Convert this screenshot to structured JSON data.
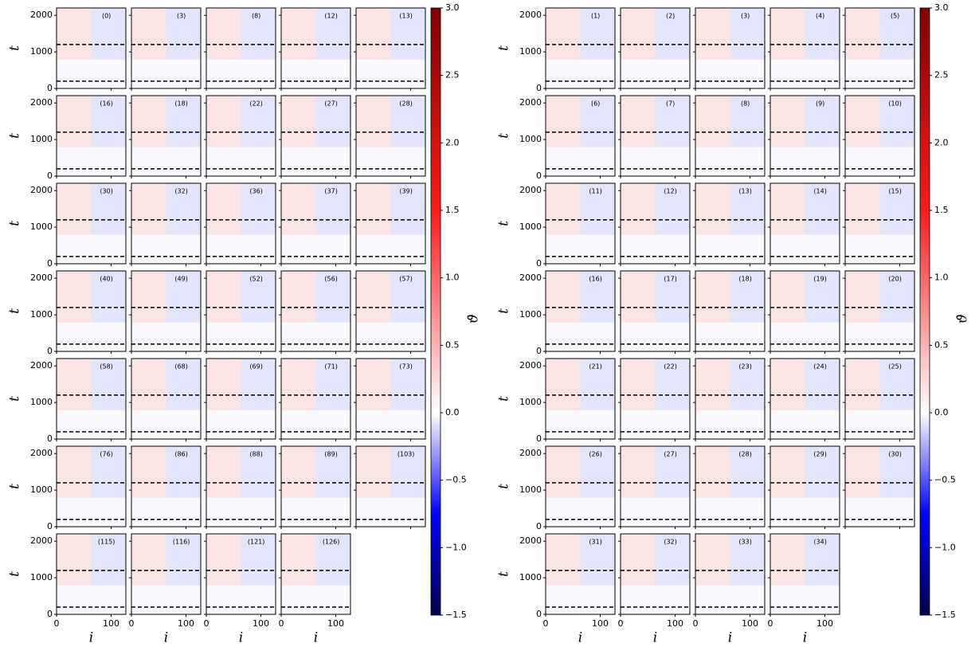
{
  "chart_data": [
    {
      "type": "heatmap-grid",
      "panels": [
        "(0)",
        "(3)",
        "(8)",
        "(12)",
        "(13)",
        "(16)",
        "(18)",
        "(22)",
        "(27)",
        "(28)",
        "(30)",
        "(32)",
        "(36)",
        "(37)",
        "(39)",
        "(40)",
        "(49)",
        "(52)",
        "(56)",
        "(57)",
        "(58)",
        "(68)",
        "(69)",
        "(71)",
        "(73)",
        "(76)",
        "(86)",
        "(88)",
        "(89)",
        "(103)",
        "(115)",
        "(116)",
        "(121)",
        "(126)"
      ],
      "xlabel": "i",
      "ylabel": "t",
      "xlim": [
        0,
        127
      ],
      "xticks": [
        0,
        100
      ],
      "ylim": [
        0,
        2200
      ],
      "yticks": [
        0,
        1000,
        2000
      ],
      "hlines": [
        200,
        1200
      ],
      "colorbar": {
        "label": "ϑ̇",
        "lim": [
          -1.5,
          3.0
        ],
        "ticks": [
          {
            "value": 3.0,
            "label": "3.0"
          },
          {
            "value": 2.5,
            "label": "2.5"
          },
          {
            "value": 2.0,
            "label": "2.0"
          },
          {
            "value": 1.5,
            "label": "1.5"
          },
          {
            "value": 1.0,
            "label": "1.0"
          },
          {
            "value": 0.5,
            "label": "0.5"
          },
          {
            "value": 0.0,
            "label": "0.0"
          },
          {
            "value": -0.5,
            "label": "−0.5"
          },
          {
            "value": -1.0,
            "label": "−1.0"
          },
          {
            "value": -1.5,
            "label": "−1.5"
          }
        ]
      }
    },
    {
      "type": "heatmap-grid",
      "panels": [
        "(1)",
        "(2)",
        "(3)",
        "(4)",
        "(5)",
        "(6)",
        "(7)",
        "(8)",
        "(9)",
        "(10)",
        "(11)",
        "(12)",
        "(13)",
        "(14)",
        "(15)",
        "(16)",
        "(17)",
        "(18)",
        "(19)",
        "(20)",
        "(21)",
        "(22)",
        "(23)",
        "(24)",
        "(25)",
        "(26)",
        "(27)",
        "(28)",
        "(29)",
        "(30)",
        "(31)",
        "(32)",
        "(33)",
        "(34)"
      ],
      "xlabel": "i",
      "ylabel": "t",
      "xlim": [
        0,
        127
      ],
      "xticks": [
        0,
        100
      ],
      "ylim": [
        0,
        2200
      ],
      "yticks": [
        0,
        1000,
        2000
      ],
      "hlines": [
        200,
        1200
      ],
      "colorbar": {
        "label": "ϑ̇",
        "lim": [
          -1.5,
          3.0
        ],
        "ticks": [
          {
            "value": 3.0,
            "label": "3.0"
          },
          {
            "value": 2.5,
            "label": "2.5"
          },
          {
            "value": 2.0,
            "label": "2.0"
          },
          {
            "value": 1.5,
            "label": "1.5"
          },
          {
            "value": 1.0,
            "label": "1.0"
          },
          {
            "value": 0.5,
            "label": "0.5"
          },
          {
            "value": 0.0,
            "label": "0.0"
          },
          {
            "value": -0.5,
            "label": "−0.5"
          },
          {
            "value": -1.0,
            "label": "−1.0"
          },
          {
            "value": -1.5,
            "label": "−1.5"
          }
        ]
      }
    }
  ]
}
